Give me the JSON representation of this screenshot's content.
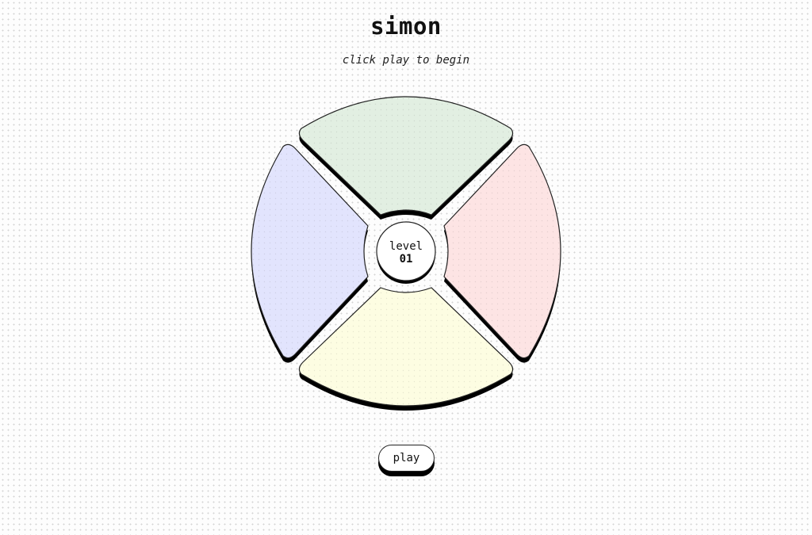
{
  "game": {
    "title": "simon",
    "status": "click play to begin"
  },
  "level": {
    "label": "level",
    "value": "01"
  },
  "pads": {
    "top": {
      "color": "#e2efe2"
    },
    "right": {
      "color": "#fde4e4"
    },
    "bottom": {
      "color": "#fdfde2"
    },
    "left": {
      "color": "#e2e4fd"
    }
  },
  "controls": {
    "play_label": "play"
  }
}
